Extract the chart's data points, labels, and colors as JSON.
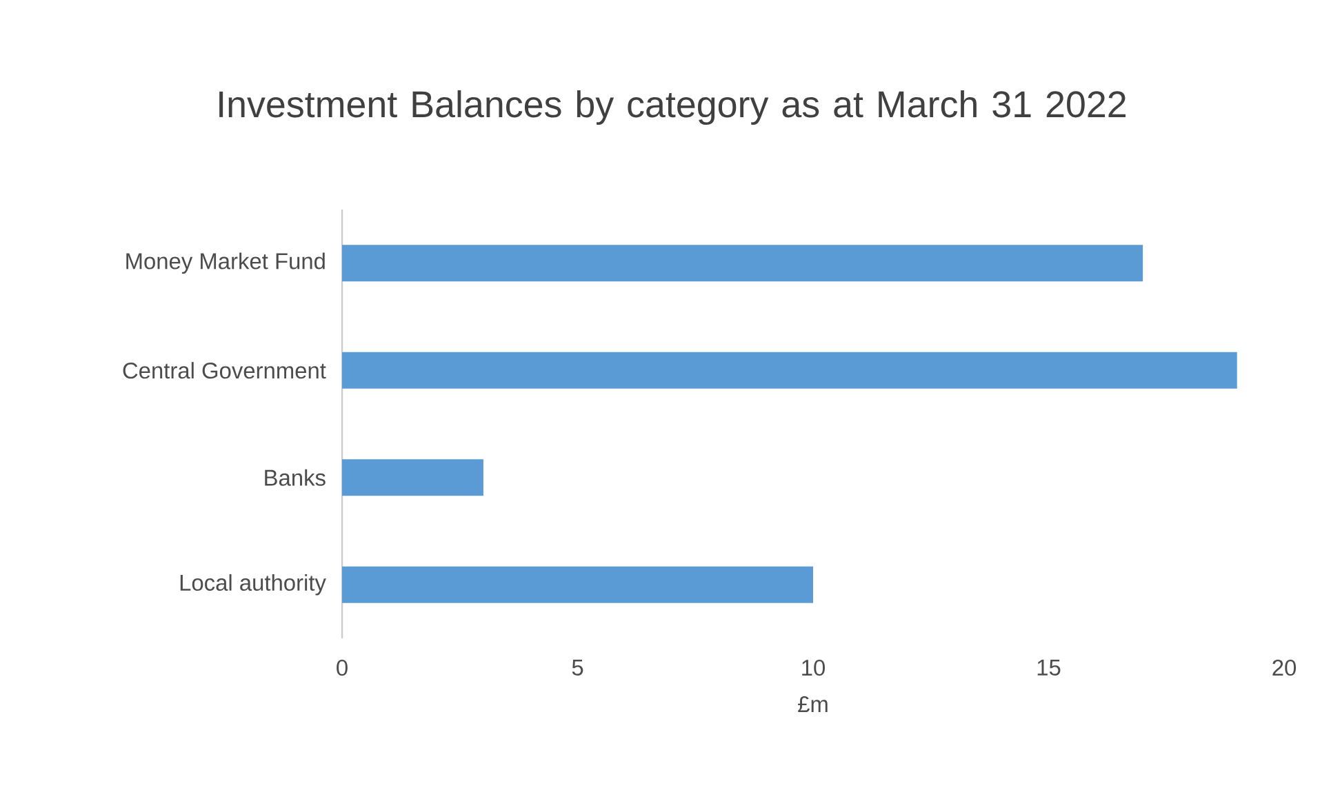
{
  "chart_data": {
    "type": "bar",
    "orientation": "horizontal",
    "title": "Investment Balances by category as at March 31 2022",
    "categories": [
      "Money Market Fund",
      "Central Government",
      "Banks",
      "Local authority"
    ],
    "values": [
      17,
      19,
      3,
      10
    ],
    "color": "#5b9bd5",
    "xlabel": "£m",
    "xlim": [
      0,
      20
    ],
    "xticks": [
      0,
      5,
      10,
      15,
      20
    ]
  }
}
